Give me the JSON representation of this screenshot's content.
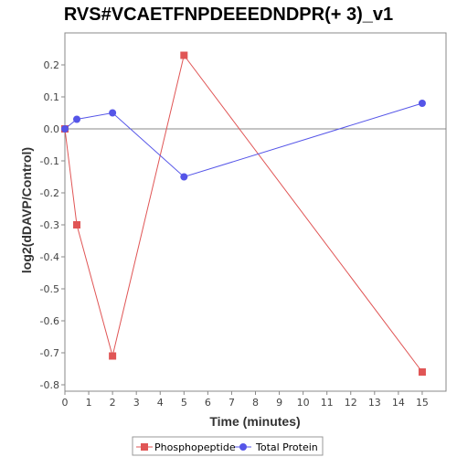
{
  "chart_data": {
    "type": "line",
    "title": "RVS#VCAETFNPDEEEDNDPR(+ 3)_v1",
    "xlabel": "Time (minutes)",
    "ylabel": "log2(dDAVP/Control)",
    "xlim": [
      0,
      16
    ],
    "ylim": [
      -0.82,
      0.3
    ],
    "xticks": [
      0,
      1,
      2,
      3,
      4,
      5,
      6,
      7,
      8,
      9,
      10,
      11,
      12,
      13,
      14,
      15
    ],
    "yticks": [
      0.2,
      0.1,
      0.0,
      -0.1,
      -0.2,
      -0.3,
      -0.4,
      -0.5,
      -0.6,
      -0.7,
      -0.8
    ],
    "ytick_labels": [
      "0.2",
      "0.1",
      "0.0",
      "-0.1",
      "-0.2",
      "-0.3",
      "-0.4",
      "-0.5",
      "-0.6",
      "-0.7",
      "-0.8"
    ],
    "grid": false,
    "zero_line": true,
    "legend_position": "bottom",
    "series": [
      {
        "name": "Phosphopeptide",
        "color": "#e05555",
        "marker": "square",
        "x": [
          0,
          0.5,
          2,
          5,
          15
        ],
        "y": [
          0.0,
          -0.3,
          -0.71,
          0.23,
          -0.76
        ]
      },
      {
        "name": "Total Protein",
        "color": "#5555e8",
        "marker": "circle",
        "x": [
          0,
          0.5,
          2,
          5,
          15
        ],
        "y": [
          0.0,
          0.03,
          0.05,
          -0.15,
          0.08
        ]
      }
    ]
  }
}
